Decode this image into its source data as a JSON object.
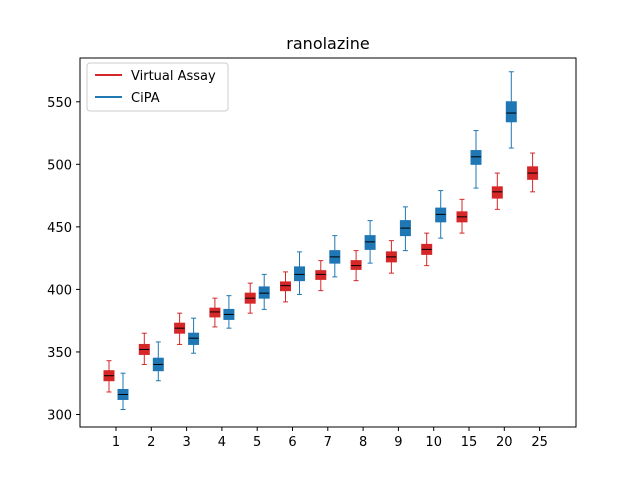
{
  "chart_data": {
    "type": "box",
    "title": "ranolazine",
    "xlabel": "",
    "ylabel": "",
    "categories": [
      "1",
      "2",
      "3",
      "4",
      "5",
      "6",
      "7",
      "8",
      "9",
      "10",
      "15",
      "20",
      "25"
    ],
    "yticks": [
      300,
      350,
      400,
      450,
      500,
      550
    ],
    "ylim": [
      290,
      585
    ],
    "legend_position": "top-left",
    "series": [
      {
        "name": "Virtual Assay",
        "color": "#d62728",
        "boxes": [
          {
            "category": "1",
            "whisker_low": 318,
            "q1": 327,
            "median": 331,
            "q3": 335,
            "whisker_high": 343
          },
          {
            "category": "2",
            "whisker_low": 340,
            "q1": 348,
            "median": 352,
            "q3": 356,
            "whisker_high": 365
          },
          {
            "category": "3",
            "whisker_low": 356,
            "q1": 365,
            "median": 369,
            "q3": 373,
            "whisker_high": 381
          },
          {
            "category": "4",
            "whisker_low": 370,
            "q1": 378,
            "median": 382,
            "q3": 385,
            "whisker_high": 393
          },
          {
            "category": "5",
            "whisker_low": 381,
            "q1": 389,
            "median": 393,
            "q3": 397,
            "whisker_high": 405
          },
          {
            "category": "6",
            "whisker_low": 390,
            "q1": 399,
            "median": 403,
            "q3": 406,
            "whisker_high": 414
          },
          {
            "category": "7",
            "whisker_low": 399,
            "q1": 408,
            "median": 412,
            "q3": 415,
            "whisker_high": 423
          },
          {
            "category": "8",
            "whisker_low": 407,
            "q1": 416,
            "median": 419,
            "q3": 423,
            "whisker_high": 431
          },
          {
            "category": "9",
            "whisker_low": 413,
            "q1": 422,
            "median": 426,
            "q3": 430,
            "whisker_high": 439
          },
          {
            "category": "10",
            "whisker_low": 419,
            "q1": 428,
            "median": 432,
            "q3": 436,
            "whisker_high": 445
          },
          {
            "category": "15",
            "whisker_low": 445,
            "q1": 454,
            "median": 458,
            "q3": 462,
            "whisker_high": 472
          },
          {
            "category": "20",
            "whisker_low": 464,
            "q1": 473,
            "median": 478,
            "q3": 482,
            "whisker_high": 493
          },
          {
            "category": "25",
            "whisker_low": 478,
            "q1": 488,
            "median": 493,
            "q3": 498,
            "whisker_high": 509
          }
        ]
      },
      {
        "name": "CiPA",
        "color": "#1f77b4",
        "boxes": [
          {
            "category": "1",
            "whisker_low": 304,
            "q1": 312,
            "median": 316,
            "q3": 320,
            "whisker_high": 333
          },
          {
            "category": "2",
            "whisker_low": 327,
            "q1": 335,
            "median": 340,
            "q3": 345,
            "whisker_high": 358
          },
          {
            "category": "3",
            "whisker_low": 349,
            "q1": 356,
            "median": 361,
            "q3": 365,
            "whisker_high": 377
          },
          {
            "category": "4",
            "whisker_low": 369,
            "q1": 376,
            "median": 380,
            "q3": 384,
            "whisker_high": 395
          },
          {
            "category": "5",
            "whisker_low": 384,
            "q1": 393,
            "median": 397,
            "q3": 402,
            "whisker_high": 412
          },
          {
            "category": "6",
            "whisker_low": 396,
            "q1": 407,
            "median": 412,
            "q3": 418,
            "whisker_high": 430
          },
          {
            "category": "7",
            "whisker_low": 410,
            "q1": 421,
            "median": 426,
            "q3": 431,
            "whisker_high": 443
          },
          {
            "category": "8",
            "whisker_low": 421,
            "q1": 432,
            "median": 438,
            "q3": 443,
            "whisker_high": 455
          },
          {
            "category": "9",
            "whisker_low": 431,
            "q1": 443,
            "median": 449,
            "q3": 455,
            "whisker_high": 466
          },
          {
            "category": "10",
            "whisker_low": 441,
            "q1": 454,
            "median": 460,
            "q3": 465,
            "whisker_high": 479
          },
          {
            "category": "15",
            "whisker_low": 481,
            "q1": 500,
            "median": 506,
            "q3": 511,
            "whisker_high": 527
          },
          {
            "category": "20",
            "whisker_low": 513,
            "q1": 534,
            "median": 541,
            "q3": 550,
            "whisker_high": 574
          }
        ]
      }
    ]
  }
}
